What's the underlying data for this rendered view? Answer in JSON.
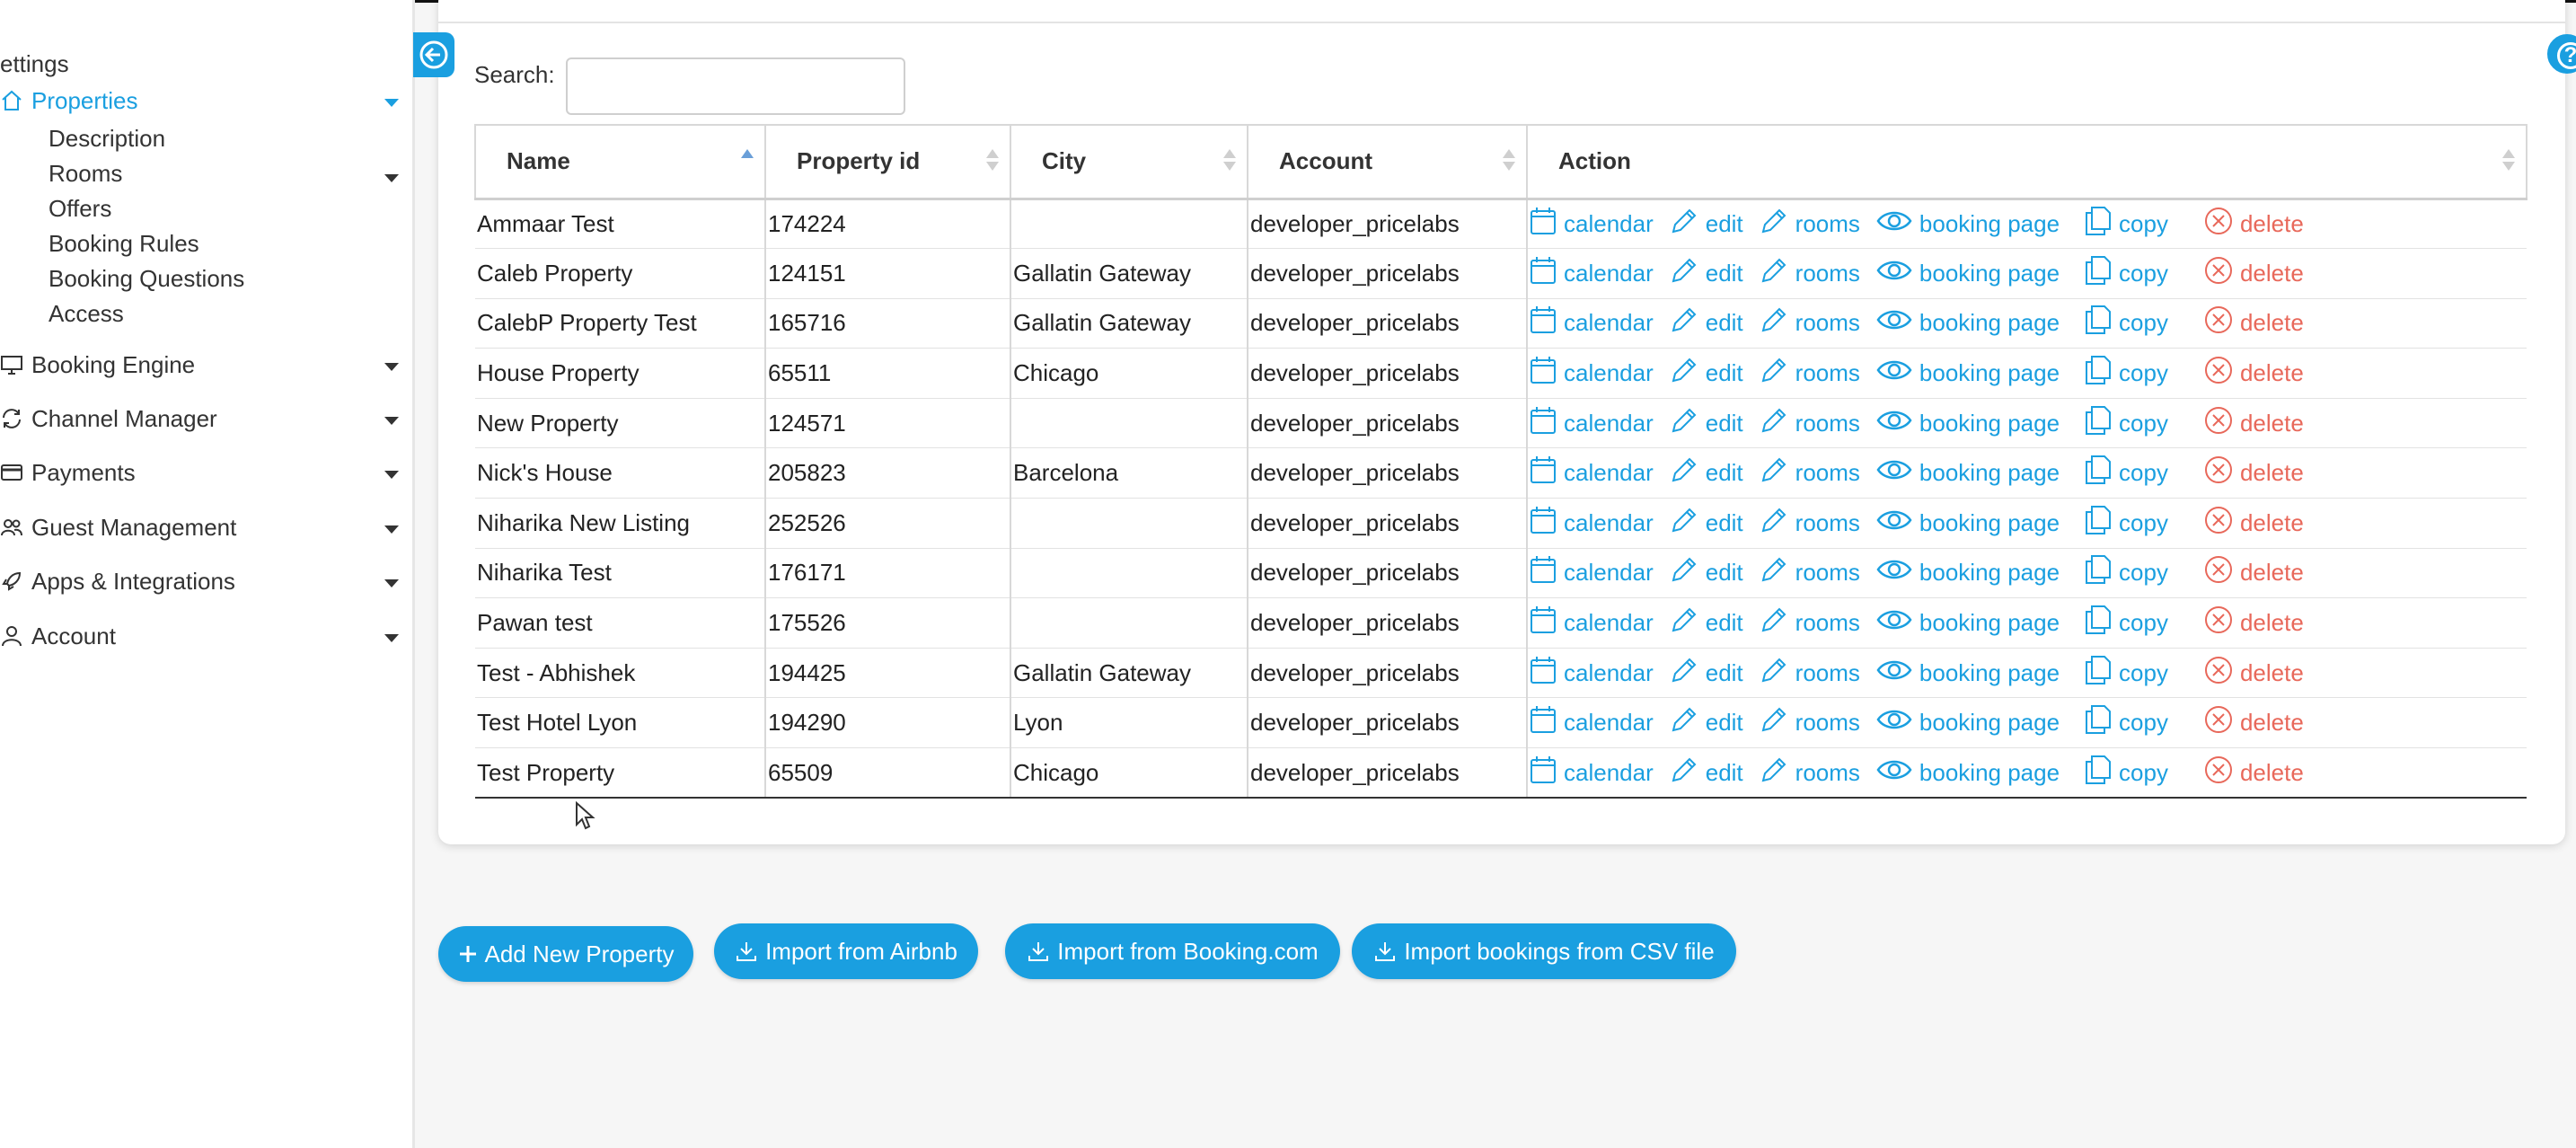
{
  "sidebar": {
    "settings_label": "ettings",
    "properties_label": "Properties",
    "sub_items": [
      "Description",
      "Rooms",
      "Offers",
      "Booking Rules",
      "Booking Questions",
      "Access"
    ],
    "sections": [
      {
        "label": "Booking Engine",
        "icon": "monitor-icon"
      },
      {
        "label": "Channel Manager",
        "icon": "sync-icon"
      },
      {
        "label": "Payments",
        "icon": "credit-card-icon"
      },
      {
        "label": "Guest Management",
        "icon": "users-icon"
      },
      {
        "label": "Apps & Integrations",
        "icon": "rocket-icon"
      },
      {
        "label": "Account",
        "icon": "user-icon"
      }
    ]
  },
  "search": {
    "label": "Search:",
    "value": "",
    "placeholder": ""
  },
  "table": {
    "columns": [
      "Name",
      "Property id",
      "City",
      "Account",
      "Action"
    ],
    "rows": [
      {
        "name": "Ammaar Test",
        "id": "174224",
        "city": "",
        "account": "developer_pricelabs"
      },
      {
        "name": "Caleb Property",
        "id": "124151",
        "city": "Gallatin Gateway",
        "account": "developer_pricelabs"
      },
      {
        "name": "CalebP Property Test",
        "id": "165716",
        "city": "Gallatin Gateway",
        "account": "developer_pricelabs"
      },
      {
        "name": "House Property",
        "id": "65511",
        "city": "Chicago",
        "account": "developer_pricelabs"
      },
      {
        "name": "New Property",
        "id": "124571",
        "city": "",
        "account": "developer_pricelabs"
      },
      {
        "name": "Nick's House",
        "id": "205823",
        "city": "Barcelona",
        "account": "developer_pricelabs"
      },
      {
        "name": "Niharika New Listing",
        "id": "252526",
        "city": "",
        "account": "developer_pricelabs"
      },
      {
        "name": "Niharika Test",
        "id": "176171",
        "city": "",
        "account": "developer_pricelabs"
      },
      {
        "name": "Pawan test",
        "id": "175526",
        "city": "",
        "account": "developer_pricelabs"
      },
      {
        "name": "Test - Abhishek",
        "id": "194425",
        "city": "Gallatin Gateway",
        "account": "developer_pricelabs"
      },
      {
        "name": "Test Hotel Lyon",
        "id": "194290",
        "city": "Lyon",
        "account": "developer_pricelabs"
      },
      {
        "name": "Test Property",
        "id": "65509",
        "city": "Chicago",
        "account": "developer_pricelabs"
      }
    ],
    "actions": {
      "calendar": "calendar",
      "edit": "edit",
      "rooms": "rooms",
      "booking_page": "booking page",
      "copy": "copy",
      "delete": "delete"
    }
  },
  "buttons": {
    "add_new": "Add New Property",
    "import_airbnb": "Import from Airbnb",
    "import_booking": "Import from Booking.com",
    "import_csv": "Import bookings from CSV file"
  },
  "colors": {
    "accent": "#1a9fe0",
    "danger": "#e8685a"
  }
}
